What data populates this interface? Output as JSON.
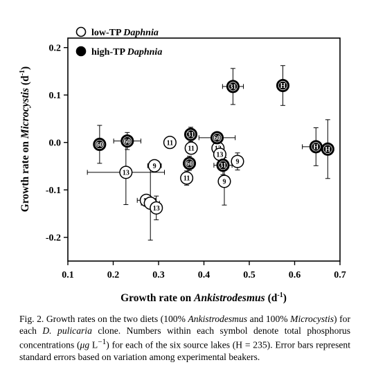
{
  "chart_data": {
    "type": "scatter",
    "xlabel_plain": "Growth rate on ",
    "xlabel_italic": "Ankistrodesmus",
    "xlabel_unit": " (d",
    "xlabel_unit_sup": "-1",
    "xlabel_unit_end": ")",
    "ylabel_plain": "Growth rate on ",
    "ylabel_italic": "Microcystis",
    "ylabel_unit": " (d",
    "ylabel_unit_sup": "-1",
    "ylabel_unit_end": ")",
    "xlim": [
      0.1,
      0.7
    ],
    "ylim": [
      -0.25,
      0.22
    ],
    "xticks": [
      "0.1",
      "0.2",
      "0.3",
      "0.4",
      "0.5",
      "0.6",
      "0.7"
    ],
    "xtick_values": [
      0.1,
      0.2,
      0.3,
      0.4,
      0.5,
      0.6,
      0.7
    ],
    "yticks": [
      "0.2",
      "0.1",
      "0.0",
      "-0.1",
      "-0.2"
    ],
    "ytick_values": [
      0.2,
      0.1,
      0.0,
      -0.1,
      -0.2
    ],
    "grid": false,
    "legend_position": "top-left",
    "series": [
      {
        "name_plain": "low-TP ",
        "name_italic": "Daphnia",
        "marker": "open-circle",
        "points": [
          {
            "x": 0.228,
            "y": -0.063,
            "label": "13",
            "xerr": 0.085,
            "yerr": 0.068
          },
          {
            "x": 0.291,
            "y": -0.049,
            "label": "9",
            "xerr": 0.015,
            "yerr": 0.012
          },
          {
            "x": 0.325,
            "y": 0.0,
            "label": "11",
            "xerr": 0.0,
            "yerr": 0.0
          },
          {
            "x": 0.273,
            "y": -0.122,
            "label": "11",
            "xerr": 0.02,
            "yerr": 0.0
          },
          {
            "x": 0.282,
            "y": -0.128,
            "label": "",
            "xerr": 0.02,
            "yerr": 0.078
          },
          {
            "x": 0.295,
            "y": -0.138,
            "label": "13",
            "xerr": 0.0,
            "yerr": 0.025
          },
          {
            "x": 0.372,
            "y": -0.012,
            "label": "11",
            "xerr": 0.0,
            "yerr": 0.0
          },
          {
            "x": 0.362,
            "y": -0.075,
            "label": "11",
            "xerr": 0.0,
            "yerr": 0.015
          },
          {
            "x": 0.431,
            "y": -0.012,
            "label": "13",
            "xerr": 0.0,
            "yerr": 0.0
          },
          {
            "x": 0.435,
            "y": -0.025,
            "label": "13",
            "xerr": 0.0,
            "yerr": 0.0
          },
          {
            "x": 0.445,
            "y": -0.082,
            "label": "9",
            "xerr": 0.0,
            "yerr": 0.05
          },
          {
            "x": 0.474,
            "y": -0.04,
            "label": "9",
            "xerr": 0.0,
            "yerr": 0.018
          }
        ]
      },
      {
        "name_plain": "high-TP ",
        "name_italic": "Daphnia",
        "marker": "filled-circle",
        "points": [
          {
            "x": 0.17,
            "y": -0.004,
            "label": "60",
            "xerr": 0.0,
            "yerr": 0.04
          },
          {
            "x": 0.231,
            "y": 0.003,
            "label": "60",
            "xerr": 0.03,
            "yerr": 0.018
          },
          {
            "x": 0.371,
            "y": 0.017,
            "label": "31",
            "xerr": 0.0,
            "yerr": 0.015
          },
          {
            "x": 0.368,
            "y": -0.044,
            "label": "60",
            "xerr": 0.0,
            "yerr": 0.015
          },
          {
            "x": 0.429,
            "y": 0.01,
            "label": "60",
            "xerr": 0.04,
            "yerr": 0.01
          },
          {
            "x": 0.442,
            "y": -0.048,
            "label": "31",
            "xerr": 0.02,
            "yerr": 0.02
          },
          {
            "x": 0.464,
            "y": 0.118,
            "label": "31",
            "xerr": 0.023,
            "yerr": 0.038
          },
          {
            "x": 0.574,
            "y": 0.12,
            "label": "H",
            "xerr": 0.0,
            "yerr": 0.042
          },
          {
            "x": 0.647,
            "y": -0.009,
            "label": "H",
            "xerr": 0.03,
            "yerr": 0.04
          },
          {
            "x": 0.673,
            "y": -0.014,
            "label": "H",
            "xerr": 0.0,
            "yerr": 0.062
          }
        ]
      }
    ]
  },
  "caption": {
    "p1": "Fig. 2.   Growth rates on the two diets (100% ",
    "i1": "Ankistrodesmus",
    "p2": " and 100% ",
    "i2": "Microcystis",
    "p3": ") for each ",
    "i3": "D. pulicaria",
    "p4": " clone. Numbers within each symbol denote total phosphorus concentrations (",
    "mu": "μg",
    "p5": " L",
    "sup": "−1",
    "p6": ") for each of the six source lakes (H = 235). Error bars represent standard errors based on variation among experimental beakers."
  }
}
